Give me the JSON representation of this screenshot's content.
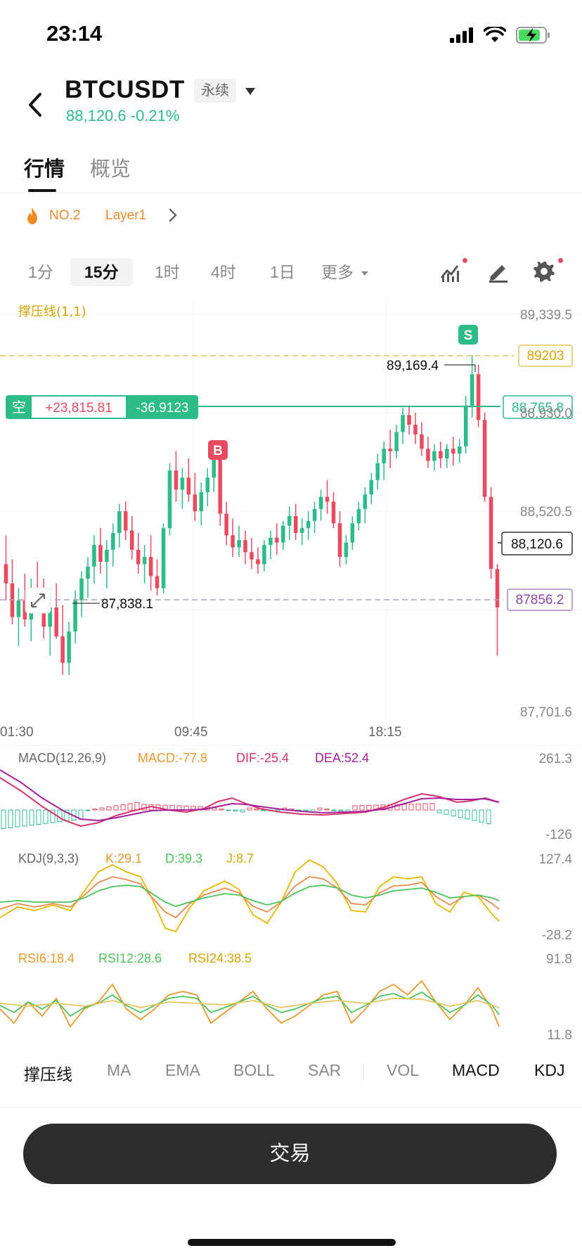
{
  "status_bar": {
    "time": "23:14"
  },
  "header": {
    "symbol": "BTCUSDT",
    "contract_type": "永续",
    "price_change": "88,120.6 -0.21%"
  },
  "main_tabs": [
    {
      "label": "行情",
      "active": true
    },
    {
      "label": "概览",
      "active": false
    }
  ],
  "tags": {
    "rank": "NO.2",
    "sector": "Layer1"
  },
  "intervals": [
    {
      "label": "1分",
      "active": false
    },
    {
      "label": "15分",
      "active": true
    },
    {
      "label": "1时",
      "active": false
    },
    {
      "label": "4时",
      "active": false
    },
    {
      "label": "1日",
      "active": false
    },
    {
      "label": "更多",
      "active": false
    }
  ],
  "chart": {
    "indicator_label": "撑压线(1,1)",
    "price_axis": [
      "89,339.5",
      "88,930.0",
      "88,520.5",
      "87,701.6"
    ],
    "resistance_line": "89203",
    "support_line": "87856.2",
    "high_label": "89,169.4",
    "low_label": "87,838.1",
    "current_price": "88,120.6",
    "position": {
      "side": "空",
      "pnl": "+23,815.81",
      "qty": "-36.9123",
      "entry_price": "88,765.8"
    },
    "buy_marker": "B",
    "sell_marker": "S",
    "time_axis": [
      "01:30",
      "09:45",
      "18:15"
    ]
  },
  "macd": {
    "params": "MACD(12,26,9)",
    "macd": "MACD:-77.8",
    "dif": "DIF:-25.4",
    "dea": "DEA:52.4",
    "axis_top": "261.3",
    "axis_bottom": "-126"
  },
  "kdj": {
    "params": "KDJ(9,3,3)",
    "k": "K:29.1",
    "d": "D:39.3",
    "j": "J:8.7",
    "axis_top": "127.4",
    "axis_bottom": "-28.2"
  },
  "rsi": {
    "rsi6": "RSI6:18.4",
    "rsi12": "RSI12:28.6",
    "rsi24": "RSI24:38.5",
    "axis_top": "91.8",
    "axis_bottom": "11.8"
  },
  "indicator_tabs": [
    {
      "label": "撑压线",
      "selected": true
    },
    {
      "label": "MA",
      "selected": false
    },
    {
      "label": "EMA",
      "selected": false
    },
    {
      "label": "BOLL",
      "selected": false
    },
    {
      "label": "SAR",
      "selected": false
    },
    {
      "label": "VOL",
      "selected": false
    },
    {
      "label": "MACD",
      "selected": true
    },
    {
      "label": "KDJ",
      "selected": true
    }
  ],
  "trade_button": "交易",
  "colors": {
    "up": "#2dbc88",
    "down": "#e84a5f",
    "accent_gold": "#e6b800",
    "support_purple": "#9b59b6"
  },
  "chart_data": {
    "type": "candlestick",
    "y_range": [
      87701.6,
      89339.5
    ],
    "x_ticks": [
      "01:30",
      "09:45",
      "18:15"
    ],
    "ohlc": [
      [
        88300,
        88420,
        88150,
        88220
      ],
      [
        88220,
        88320,
        88050,
        88080
      ],
      [
        88080,
        88200,
        87960,
        88150
      ],
      [
        88150,
        88260,
        88040,
        88070
      ],
      [
        88070,
        88240,
        87980,
        88200
      ],
      [
        88200,
        88310,
        88100,
        88150
      ],
      [
        88150,
        88240,
        87990,
        88040
      ],
      [
        88040,
        88190,
        87920,
        88120
      ],
      [
        88120,
        88220,
        87990,
        88000
      ],
      [
        88000,
        88130,
        87840,
        87890
      ],
      [
        87890,
        88060,
        87838,
        88020
      ],
      [
        88020,
        88190,
        87970,
        88150
      ],
      [
        88150,
        88270,
        88080,
        88240
      ],
      [
        88240,
        88330,
        88160,
        88290
      ],
      [
        88290,
        88420,
        88220,
        88380
      ],
      [
        88380,
        88450,
        88260,
        88310
      ],
      [
        88310,
        88400,
        88200,
        88360
      ],
      [
        88360,
        88470,
        88290,
        88430
      ],
      [
        88430,
        88550,
        88370,
        88520
      ],
      [
        88520,
        88560,
        88400,
        88440
      ],
      [
        88440,
        88500,
        88320,
        88360
      ],
      [
        88360,
        88430,
        88260,
        88300
      ],
      [
        88300,
        88380,
        88220,
        88330
      ],
      [
        88330,
        88420,
        88190,
        88250
      ],
      [
        88250,
        88320,
        88170,
        88200
      ],
      [
        88200,
        88470,
        88180,
        88450
      ],
      [
        88450,
        88720,
        88420,
        88690
      ],
      [
        88690,
        88770,
        88560,
        88610
      ],
      [
        88610,
        88700,
        88530,
        88660
      ],
      [
        88660,
        88740,
        88560,
        88590
      ],
      [
        88590,
        88680,
        88480,
        88520
      ],
      [
        88520,
        88640,
        88460,
        88600
      ],
      [
        88600,
        88700,
        88540,
        88660
      ],
      [
        88660,
        88790,
        88600,
        88740
      ],
      [
        88740,
        88780,
        88460,
        88510
      ],
      [
        88510,
        88560,
        88380,
        88420
      ],
      [
        88420,
        88490,
        88330,
        88370
      ],
      [
        88370,
        88460,
        88330,
        88400
      ],
      [
        88400,
        88440,
        88300,
        88350
      ],
      [
        88350,
        88410,
        88280,
        88320
      ],
      [
        88320,
        88370,
        88260,
        88300
      ],
      [
        88300,
        88400,
        88270,
        88380
      ],
      [
        88380,
        88440,
        88320,
        88410
      ],
      [
        88410,
        88470,
        88340,
        88390
      ],
      [
        88390,
        88480,
        88360,
        88460
      ],
      [
        88460,
        88540,
        88400,
        88500
      ],
      [
        88500,
        88550,
        88400,
        88430
      ],
      [
        88430,
        88490,
        88380,
        88450
      ],
      [
        88450,
        88520,
        88400,
        88480
      ],
      [
        88480,
        88560,
        88430,
        88530
      ],
      [
        88530,
        88610,
        88480,
        88580
      ],
      [
        88580,
        88650,
        88510,
        88560
      ],
      [
        88560,
        88600,
        88450,
        88470
      ],
      [
        88470,
        88520,
        88290,
        88330
      ],
      [
        88330,
        88420,
        88300,
        88390
      ],
      [
        88390,
        88500,
        88360,
        88470
      ],
      [
        88470,
        88560,
        88440,
        88530
      ],
      [
        88530,
        88620,
        88470,
        88590
      ],
      [
        88590,
        88680,
        88550,
        88650
      ],
      [
        88650,
        88760,
        88610,
        88720
      ],
      [
        88720,
        88810,
        88650,
        88780
      ],
      [
        88780,
        88860,
        88700,
        88770
      ],
      [
        88770,
        88880,
        88740,
        88850
      ],
      [
        88850,
        88950,
        88800,
        88920
      ],
      [
        88920,
        88960,
        88840,
        88880
      ],
      [
        88880,
        88930,
        88800,
        88840
      ],
      [
        88840,
        88890,
        88750,
        88780
      ],
      [
        88780,
        88830,
        88700,
        88730
      ],
      [
        88730,
        88800,
        88690,
        88770
      ],
      [
        88770,
        88810,
        88700,
        88740
      ],
      [
        88740,
        88800,
        88700,
        88780
      ],
      [
        88780,
        88830,
        88710,
        88760
      ],
      [
        88760,
        88820,
        88720,
        88790
      ],
      [
        88790,
        89000,
        88760,
        88960
      ],
      [
        88960,
        89169,
        88910,
        89090
      ],
      [
        89090,
        89130,
        88870,
        88900
      ],
      [
        88900,
        88930,
        88560,
        88580
      ],
      [
        88580,
        88620,
        88240,
        88280
      ],
      [
        88280,
        88300,
        87920,
        88120
      ]
    ],
    "position_entry": 88765.8,
    "resistance": 89203,
    "support": 87856.2,
    "high": 89169.4,
    "low": 87838.1,
    "last_price": 88120.6,
    "buy_index": 28,
    "sell_index": 74
  }
}
